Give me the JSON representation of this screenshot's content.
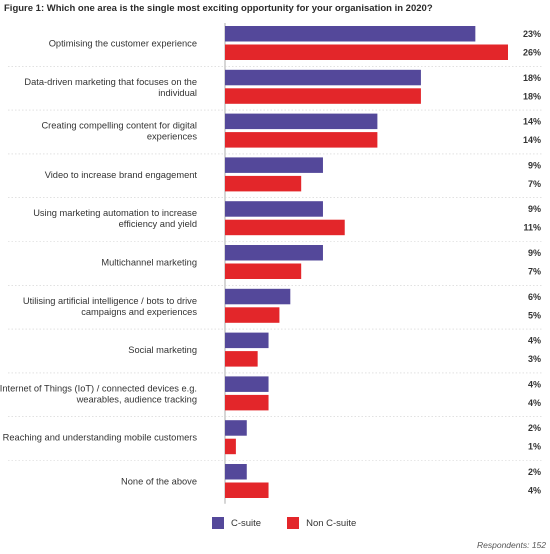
{
  "title": "Figure 1: Which one area is the single most exciting opportunity for your organisation in 2020?",
  "footnote": "Respondents: 152",
  "colors": {
    "csuite": "#54489a",
    "non_csuite": "#e3262a",
    "axis": "#999999",
    "separator": "#cfcfcf"
  },
  "legend": {
    "csuite": "C-suite",
    "non_csuite": "Non C-suite"
  },
  "chart_data": {
    "type": "bar",
    "orientation": "horizontal",
    "title": "Figure 1: Which one area is the single most exciting opportunity for your organisation in 2020?",
    "categories": [
      [
        "Optimising the customer experience"
      ],
      [
        "Data-driven marketing that focuses on the",
        "individual"
      ],
      [
        "Creating compelling content for digital",
        "experiences"
      ],
      [
        "Video to increase brand engagement"
      ],
      [
        "Using marketing automation to increase",
        "efficiency and yield"
      ],
      [
        "Multichannel marketing"
      ],
      [
        "Utilising artificial intelligence / bots to drive",
        "campaigns and experiences"
      ],
      [
        "Social marketing"
      ],
      [
        "Internet of Things (IoT) / connected devices e.g.",
        "wearables, audience tracking"
      ],
      [
        "Reaching and understanding mobile customers"
      ],
      [
        "None of the above"
      ]
    ],
    "series": [
      {
        "name": "C-suite",
        "values": [
          23,
          18,
          14,
          9,
          9,
          9,
          6,
          4,
          4,
          2,
          2
        ],
        "labels": [
          "23%",
          "18%",
          "14%",
          "9%",
          "9%",
          "9%",
          "6%",
          "4%",
          "4%",
          "2%",
          "2%"
        ]
      },
      {
        "name": "Non C-suite",
        "values": [
          26,
          18,
          14,
          7,
          11,
          7,
          5,
          3,
          4,
          1,
          4
        ],
        "labels": [
          "26%",
          "18%",
          "14%",
          "7%",
          "11%",
          "7%",
          "5%",
          "3%",
          "4%",
          "1%",
          "4%"
        ]
      }
    ],
    "xlim": [
      0,
      26
    ],
    "grid": false,
    "legend_position": "bottom-center"
  }
}
